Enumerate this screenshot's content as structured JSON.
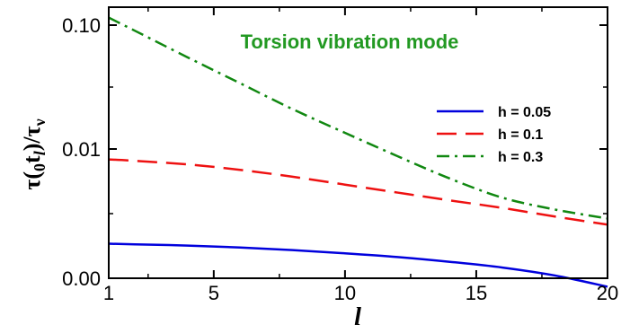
{
  "chart_data": {
    "type": "line",
    "annotation": "Torsion vibration mode",
    "xlabel": "l",
    "ylabel": {
      "tau": "τ(",
      "sub0": "0",
      "t": "t",
      "subl": "l",
      "slash": ")/τ",
      "nu": "ν"
    },
    "xlim": [
      1,
      20
    ],
    "yticks": [
      "0.00",
      "0.01",
      "0.10"
    ],
    "xticks": [
      1,
      5,
      10,
      15,
      20
    ],
    "legend_position": "right",
    "series": [
      {
        "name": "h = 0.05",
        "color": "#0000dd",
        "dash": "solid",
        "x": [
          1,
          2,
          4,
          6,
          8,
          10,
          12,
          14,
          16,
          18,
          20
        ],
        "y": [
          0.00185,
          0.00183,
          0.00179,
          0.00173,
          0.00165,
          0.00156,
          0.00146,
          0.00134,
          0.00121,
          0.00105,
          0.00086
        ]
      },
      {
        "name": "h = 0.1",
        "color": "#ee1111",
        "dash": "dashed",
        "x": [
          1,
          2,
          4,
          6,
          8,
          10,
          12,
          14,
          16,
          18,
          20
        ],
        "y": [
          0.0083,
          0.0081,
          0.0076,
          0.0069,
          0.0061,
          0.0053,
          0.0046,
          0.004,
          0.0035,
          0.003,
          0.0026
        ]
      },
      {
        "name": "h = 0.3",
        "color": "#118811",
        "dash": "dashdot",
        "x": [
          1,
          2,
          4,
          6,
          8,
          10,
          12,
          14,
          16,
          18,
          20
        ],
        "y": [
          0.115,
          0.09,
          0.055,
          0.034,
          0.021,
          0.0135,
          0.0088,
          0.0059,
          0.0042,
          0.0034,
          0.0029
        ]
      }
    ]
  }
}
